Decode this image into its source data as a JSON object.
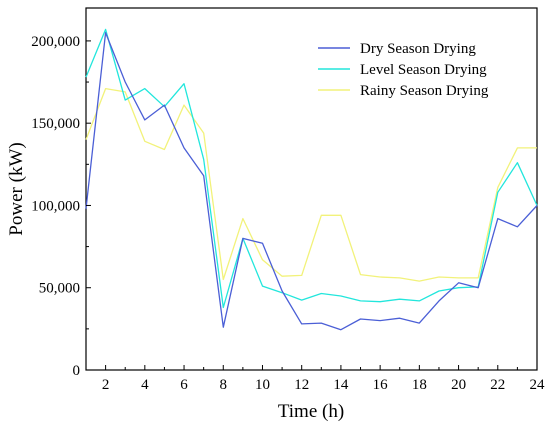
{
  "chart_data": {
    "type": "line",
    "title": "",
    "xlabel": "Time (h)",
    "ylabel": "Power (kW)",
    "xlim": [
      1,
      24
    ],
    "ylim": [
      0,
      220000
    ],
    "x": [
      1,
      2,
      3,
      4,
      5,
      6,
      7,
      8,
      9,
      10,
      11,
      12,
      13,
      14,
      15,
      16,
      17,
      18,
      19,
      20,
      21,
      22,
      23,
      24
    ],
    "x_ticks": [
      2,
      4,
      6,
      8,
      10,
      12,
      14,
      16,
      18,
      20,
      22,
      24
    ],
    "y_ticks": [
      0,
      50000,
      100000,
      150000,
      200000
    ],
    "y_tick_labels": [
      "0",
      "50,000",
      "100,000",
      "150,000",
      "200,000"
    ],
    "grid": false,
    "legend_position": "top-right",
    "series": [
      {
        "name": "Dry Season Drying",
        "color": "#4b5fd6",
        "values": [
          98000,
          205000,
          175000,
          152000,
          161000,
          135000,
          118000,
          26000,
          80000,
          77000,
          48000,
          28000,
          28500,
          24500,
          31000,
          30000,
          31500,
          28500,
          42000,
          53000,
          50000,
          92000,
          87000,
          100000
        ]
      },
      {
        "name": "Level Season Drying",
        "color": "#22e6dc",
        "values": [
          178000,
          207000,
          164000,
          171000,
          160000,
          174000,
          128000,
          38000,
          80000,
          51000,
          47000,
          42500,
          46500,
          45000,
          42000,
          41500,
          43000,
          42000,
          48000,
          50000,
          50500,
          108000,
          126000,
          100000
        ]
      },
      {
        "name": "Rainy Season Drying",
        "color": "#f2f27a",
        "values": [
          140000,
          171000,
          169000,
          139000,
          134000,
          161000,
          144000,
          55000,
          92000,
          67000,
          57000,
          57500,
          94000,
          94000,
          58000,
          56500,
          56000,
          54000,
          56500,
          56000,
          56000,
          111000,
          135000,
          135000
        ]
      }
    ]
  }
}
